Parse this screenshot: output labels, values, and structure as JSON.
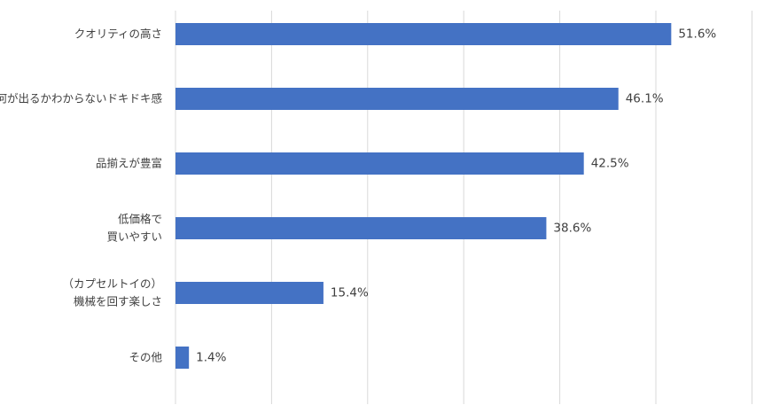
{
  "chart_data": {
    "type": "bar",
    "orientation": "horizontal",
    "categories": [
      [
        "クオリティの高さ"
      ],
      [
        "何が出るかわからないドキドキ感"
      ],
      [
        "品揃えが豊富"
      ],
      [
        "低価格で",
        "買いやすい"
      ],
      [
        "（カプセルトイの）",
        "機械を回す楽しさ"
      ],
      [
        "その他"
      ]
    ],
    "values": [
      51.6,
      46.1,
      42.5,
      38.6,
      15.4,
      1.4
    ],
    "value_labels": [
      "51.6%",
      "46.1%",
      "42.5%",
      "38.6%",
      "15.4%",
      "1.4%"
    ],
    "title": "",
    "xlabel": "",
    "ylabel": "",
    "xlim": [
      0,
      60
    ],
    "grid_step": 10,
    "grid": true,
    "legend": "none",
    "colors": {
      "bar": "#4472C4",
      "grid": "#d9d9d9",
      "text": "#3f3f3f"
    }
  }
}
